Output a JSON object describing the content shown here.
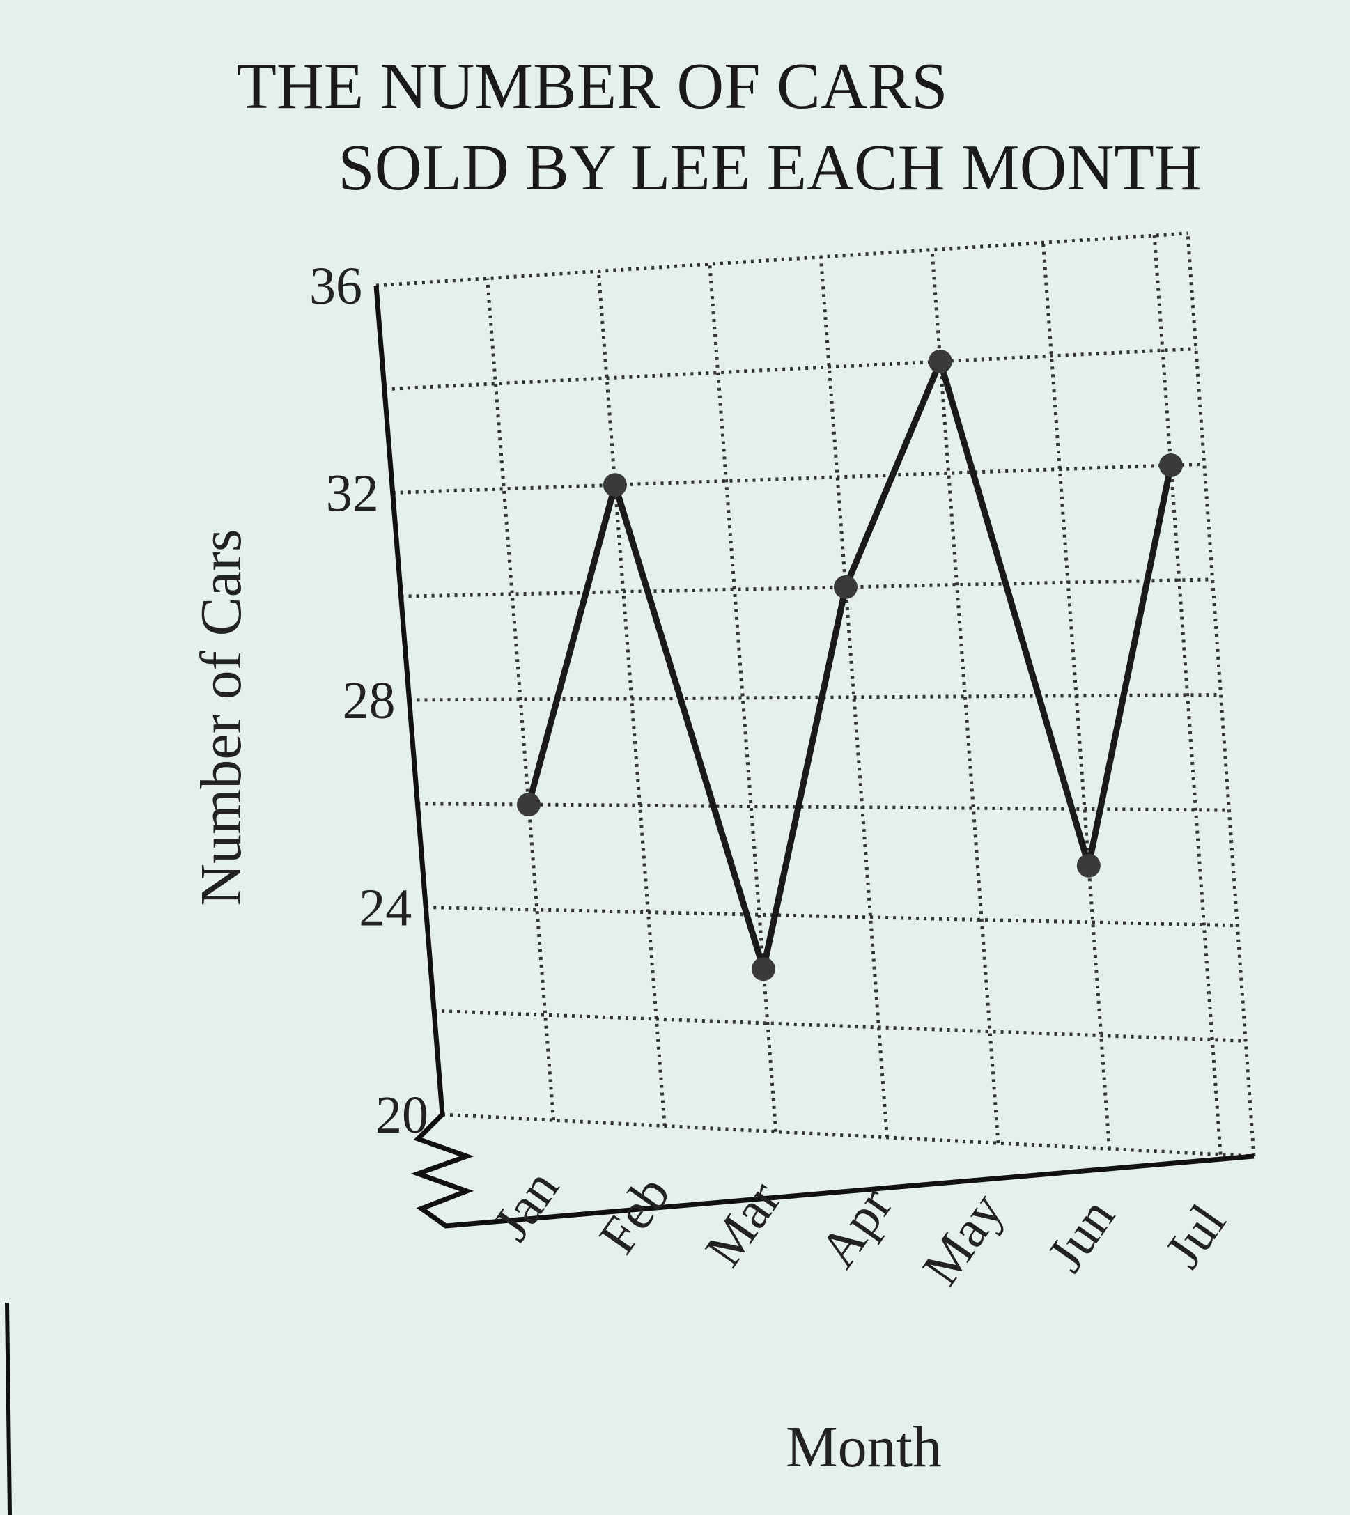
{
  "chart_data": {
    "type": "line",
    "title": [
      "THE NUMBER OF CARS",
      "SOLD BY LEE EACH MONTH"
    ],
    "xlabel": "Month",
    "ylabel": "Number of Cars",
    "categories": [
      "Jan",
      "Feb",
      "Mar",
      "Apr",
      "May",
      "Jun",
      "Jul"
    ],
    "series": [
      {
        "values": [
          26,
          32,
          23,
          30,
          34,
          25,
          32
        ]
      }
    ],
    "ylim": [
      20,
      36
    ],
    "yticks": [
      20,
      24,
      28,
      32,
      36
    ],
    "grid": true,
    "axis_break": true
  }
}
